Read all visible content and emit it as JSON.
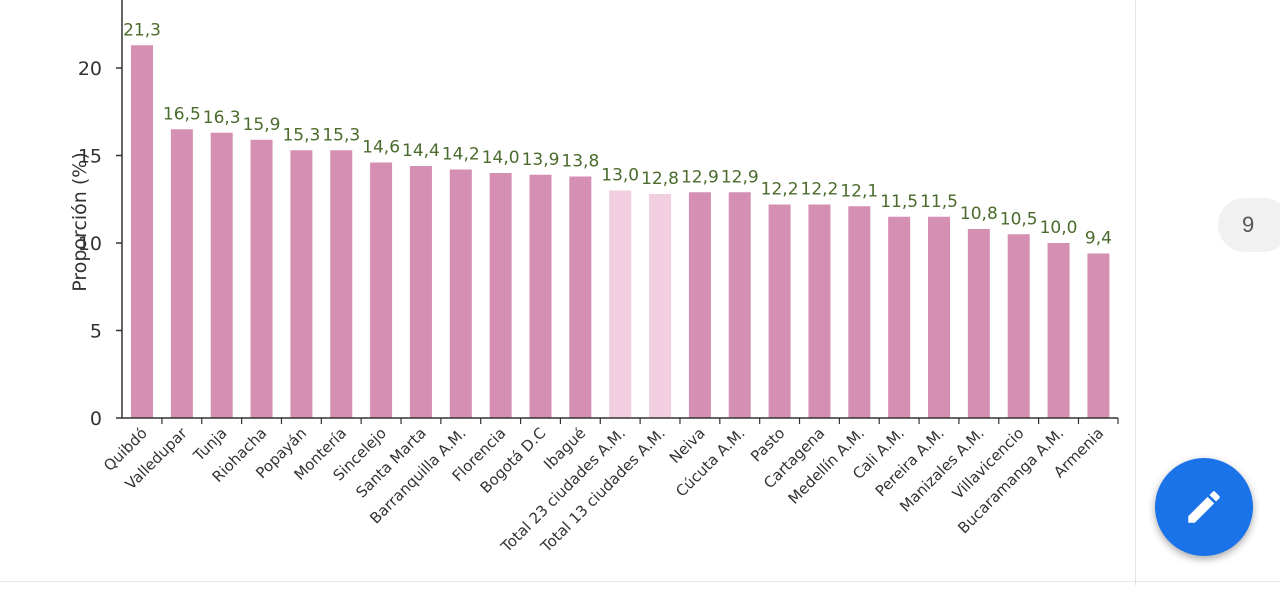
{
  "chart_data": {
    "type": "bar",
    "ylabel": "Proporción (%)",
    "ylim": [
      0,
      24
    ],
    "yticks": [
      0,
      5,
      10,
      15,
      20
    ],
    "grid": false,
    "categories": [
      "Quibdó",
      "Valledupar",
      "Tunja",
      "Riohacha",
      "Popayán",
      "Montería",
      "Sincelejo",
      "Santa Marta",
      "Barranquilla A.M.",
      "Florencia",
      "Bogotá D.C",
      "Ibagué",
      "Total 23 ciudades A.M.",
      "Total 13 ciudades A.M.",
      "Neiva",
      "Cúcuta A.M.",
      "Pasto",
      "Cartagena",
      "Medellín A.M.",
      "Cali A.M.",
      "Pereira A.M.",
      "Manizales A.M.",
      "Villavicencio",
      "Bucaramanga A.M.",
      "Armenia"
    ],
    "values": [
      21.3,
      16.5,
      16.3,
      15.9,
      15.3,
      15.3,
      14.6,
      14.4,
      14.2,
      14.0,
      13.9,
      13.8,
      13.0,
      12.8,
      12.9,
      12.9,
      12.2,
      12.2,
      12.1,
      11.5,
      11.5,
      10.8,
      10.5,
      10.0,
      9.4
    ],
    "value_labels": [
      "21,3",
      "16,5",
      "16,3",
      "15,9",
      "15,3",
      "15,3",
      "14,6",
      "14,4",
      "14,2",
      "14,0",
      "13,9",
      "13,8",
      "13,0",
      "12,8",
      "12,9",
      "12,9",
      "12,2",
      "12,2",
      "12,1",
      "11,5",
      "11,5",
      "10,8",
      "10,5",
      "10,0",
      "9,4"
    ],
    "highlight_indices": [
      12,
      13
    ],
    "colors": {
      "bar": "#d48fb2",
      "highlight": "#f2cfe0",
      "value_label": "#4a6b2c",
      "axis": "#333333"
    }
  },
  "ui": {
    "page_number": "9",
    "edit_icon": "pencil-icon",
    "fab_color": "#1a73e8"
  }
}
